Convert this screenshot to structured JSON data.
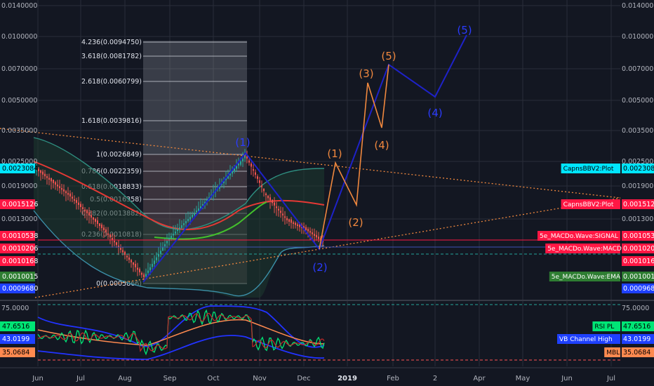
{
  "colors": {
    "bg": "#131722",
    "grid": "#2a2e39",
    "axis_text": "#b2b5be",
    "candle_up": "#26a69a",
    "candle_down": "#ef5350",
    "orange": "#f0883e",
    "blue": "#1e22c8",
    "bb_upper": "#2f8f80",
    "bb_lower": "#3b8fa8",
    "ma_red": "#e53935",
    "ma_green": "#43c02c"
  },
  "price_axis_left": [
    "0.0140000",
    "0.0100000",
    "0.0070000",
    "0.0050000",
    "0.0035000",
    "0.0025000",
    "0.0019000",
    "0.0013000"
  ],
  "price_axis_right": [
    "0.0140000",
    "0.0100000",
    "0.0070000",
    "0.0050000",
    "0.0035000",
    "0.0025000",
    "0.0019000",
    "0.0013000"
  ],
  "left_badges": [
    {
      "text": "0.0023084",
      "bg": "#00e5ff",
      "fg": "#000000"
    },
    {
      "text": "0.0015126",
      "bg": "#ff1744",
      "fg": "#ffffff"
    },
    {
      "text": "0.0010538",
      "bg": "#ff1744",
      "fg": "#ffffff"
    },
    {
      "text": "0.0010206",
      "bg": "#ff1744",
      "fg": "#ffffff"
    },
    {
      "text": "0.0010168",
      "bg": "#ff1744",
      "fg": "#ffffff"
    },
    {
      "text": "0.0010015",
      "bg": "#2e7d32",
      "fg": "#ffffff"
    },
    {
      "text": "0.0009680",
      "bg": "#1e40ff",
      "fg": "#ffffff"
    }
  ],
  "right_badges": [
    {
      "label": "CapnsBBV2:Plot",
      "value": "0.0023084",
      "bg": "#00e5ff",
      "fg": "#000000"
    },
    {
      "label": "CapnsBBV2:Plot",
      "value": "0.0015126",
      "bg": "#ff1744",
      "fg": "#ffffff"
    },
    {
      "label": "5e_MACDo.Wave:SIGNAL",
      "value": "0.0010538",
      "bg": "#ff1744",
      "fg": "#ffffff"
    },
    {
      "label": "5e_MACDo.Wave:MACD",
      "value": "0.0010206",
      "bg": "#ff1744",
      "fg": "#ffffff"
    },
    {
      "label": "",
      "value": "0.0010168",
      "bg": "#ff1744",
      "fg": "#ffffff"
    },
    {
      "label": "5e_MACDo.Wave:EMA",
      "value": "0.0010015",
      "bg": "#2e7d32",
      "fg": "#ffffff"
    },
    {
      "label": "",
      "value": "0.0009680",
      "bg": "#1e40ff",
      "fg": "#ffffff"
    }
  ],
  "fib_levels": [
    {
      "ratio": "4.236",
      "price": "0.0094750"
    },
    {
      "ratio": "3.618",
      "price": "0.0081782"
    },
    {
      "ratio": "2.618",
      "price": "0.0060799"
    },
    {
      "ratio": "1.618",
      "price": "0.0039816"
    },
    {
      "ratio": "1",
      "price": "0.0026849"
    },
    {
      "ratio": "0.786",
      "price": "0.0022359"
    },
    {
      "ratio": "0.618",
      "price": "0.0018833"
    },
    {
      "ratio": "0.5",
      "price": "0.0016358"
    },
    {
      "ratio": "0.382",
      "price": "0.0013882"
    },
    {
      "ratio": "0.236",
      "price": "0.0010818"
    },
    {
      "ratio": "0",
      "price": "0.0005866"
    }
  ],
  "wave_labels_orange": [
    "(1)",
    "(2)",
    "(3)",
    "(4)",
    "(5)"
  ],
  "wave_labels_blue": [
    "(1)",
    "(2)",
    "(4)",
    "(5)"
  ],
  "rsi_axis": {
    "left_top": "75.0000",
    "right_top": "75.0000"
  },
  "rsi_left_badges": [
    {
      "text": "47.6516",
      "bg": "#00e676",
      "fg": "#000000"
    },
    {
      "text": "43.0199",
      "bg": "#1e40ff",
      "fg": "#ffffff"
    },
    {
      "text": "35.0684",
      "bg": "#ff8a50",
      "fg": "#000000"
    }
  ],
  "rsi_right_badges": [
    {
      "label": "RSI PL",
      "value": "47.6516",
      "bg": "#00e676",
      "fg": "#000000"
    },
    {
      "label": "VB Channel High",
      "value": "43.0199",
      "bg": "#1e40ff",
      "fg": "#ffffff"
    },
    {
      "label": "MBL",
      "value": "35.0684",
      "bg": "#ff8a50",
      "fg": "#000000"
    }
  ],
  "time_axis": [
    "Jun",
    "Jul",
    "Aug",
    "Sep",
    "Oct",
    "Nov",
    "Dec",
    "2019",
    "Feb",
    "2",
    "Apr",
    "May",
    "Jun",
    "Jul"
  ]
}
